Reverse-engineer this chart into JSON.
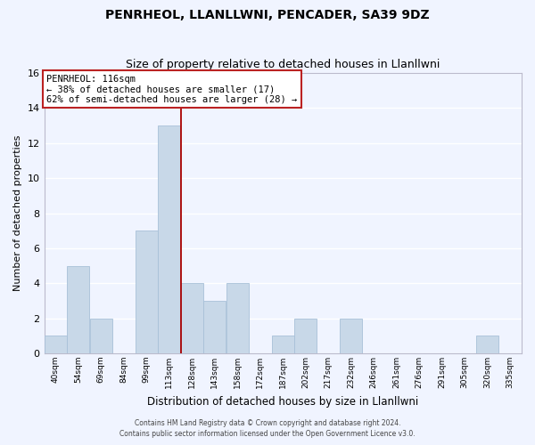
{
  "title1": "PENRHEOL, LLANLLWNI, PENCADER, SA39 9DZ",
  "title2": "Size of property relative to detached houses in Llanllwni",
  "xlabel": "Distribution of detached houses by size in Llanllwni",
  "ylabel": "Number of detached properties",
  "bin_labels": [
    "40sqm",
    "54sqm",
    "69sqm",
    "84sqm",
    "99sqm",
    "113sqm",
    "128sqm",
    "143sqm",
    "158sqm",
    "172sqm",
    "187sqm",
    "202sqm",
    "217sqm",
    "232sqm",
    "246sqm",
    "261sqm",
    "276sqm",
    "291sqm",
    "305sqm",
    "320sqm",
    "335sqm"
  ],
  "bar_values": [
    1,
    5,
    2,
    0,
    7,
    13,
    4,
    3,
    4,
    0,
    1,
    2,
    0,
    2,
    0,
    0,
    0,
    0,
    0,
    1,
    0
  ],
  "bar_color": "#c8d8e8",
  "bar_edge_color": "#a8c0d8",
  "annotation_line_color": "#aa0000",
  "annotation_text_line1": "PENRHEOL: 116sqm",
  "annotation_text_line2": "← 38% of detached houses are smaller (17)",
  "annotation_text_line3": "62% of semi-detached houses are larger (28) →",
  "annotation_box_facecolor": "white",
  "annotation_box_edgecolor": "#bb2222",
  "ylim": [
    0,
    16
  ],
  "yticks": [
    0,
    2,
    4,
    6,
    8,
    10,
    12,
    14,
    16
  ],
  "footer1": "Contains HM Land Registry data © Crown copyright and database right 2024.",
  "footer2": "Contains public sector information licensed under the Open Government Licence v3.0.",
  "background_color": "#f0f4ff",
  "plot_bg_color": "#f0f4ff",
  "grid_color": "#ffffff",
  "spine_color": "#bbbbcc"
}
